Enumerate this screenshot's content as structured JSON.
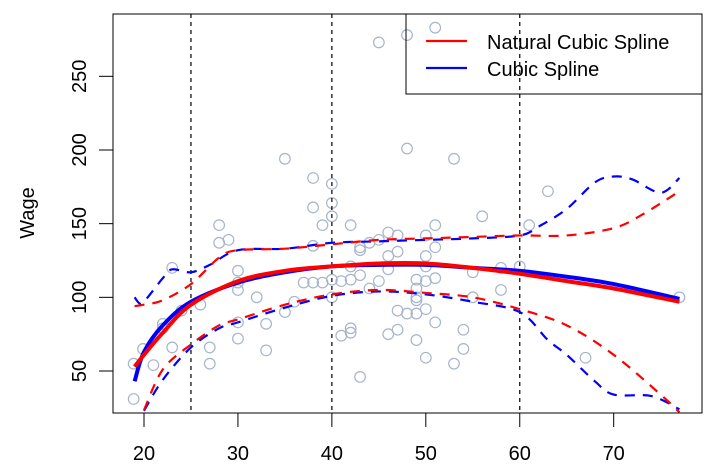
{
  "chart_data": {
    "type": "scatter",
    "title": "",
    "xlabel": "",
    "ylabel": "Wage",
    "xlim": [
      16.7,
      79.4
    ],
    "ylim": [
      21.5,
      292.3
    ],
    "xticks": [
      20,
      30,
      40,
      50,
      60,
      70
    ],
    "yticks": [
      50,
      100,
      150,
      200,
      250
    ],
    "xtick_labels": [
      "20",
      "30",
      "40",
      "50",
      "60",
      "70"
    ],
    "ytick_labels": [
      "50",
      "100",
      "150",
      "200",
      "250"
    ],
    "grid": false,
    "knots": [
      25,
      40,
      60
    ],
    "legend": {
      "placement": "top-right",
      "entries": [
        {
          "label": "Natural Cubic Spline",
          "color": "#ff0000"
        },
        {
          "label": "Cubic Spline",
          "color": "#0000ff"
        }
      ]
    },
    "points_color": "#a6b5cb",
    "points": [
      [
        18.9,
        31
      ],
      [
        18.9,
        55
      ],
      [
        19.9,
        65
      ],
      [
        21,
        54
      ],
      [
        22,
        82
      ],
      [
        22,
        79
      ],
      [
        23,
        120
      ],
      [
        23,
        66
      ],
      [
        24,
        91
      ],
      [
        26,
        95
      ],
      [
        27,
        66
      ],
      [
        27,
        55
      ],
      [
        28,
        149
      ],
      [
        28,
        137
      ],
      [
        29,
        139
      ],
      [
        30,
        118
      ],
      [
        30,
        110
      ],
      [
        30,
        105
      ],
      [
        30,
        83
      ],
      [
        30,
        72
      ],
      [
        32,
        100
      ],
      [
        33,
        82
      ],
      [
        33,
        64
      ],
      [
        35,
        194
      ],
      [
        35,
        90
      ],
      [
        36,
        97
      ],
      [
        37,
        110
      ],
      [
        38,
        181
      ],
      [
        38,
        161
      ],
      [
        38,
        135
      ],
      [
        38,
        110
      ],
      [
        39,
        149
      ],
      [
        39,
        110
      ],
      [
        40,
        177
      ],
      [
        40,
        164
      ],
      [
        40,
        155
      ],
      [
        40,
        112
      ],
      [
        40,
        100
      ],
      [
        41,
        111
      ],
      [
        41,
        74
      ],
      [
        42,
        149
      ],
      [
        42,
        121
      ],
      [
        42,
        112
      ],
      [
        42,
        79
      ],
      [
        42,
        76
      ],
      [
        43,
        134
      ],
      [
        43,
        132
      ],
      [
        43,
        115
      ],
      [
        43,
        46
      ],
      [
        44,
        137
      ],
      [
        44,
        106
      ],
      [
        45,
        273
      ],
      [
        45,
        139
      ],
      [
        45,
        111
      ],
      [
        46,
        144
      ],
      [
        46,
        128
      ],
      [
        46,
        119
      ],
      [
        46,
        75
      ],
      [
        47,
        142
      ],
      [
        47,
        131
      ],
      [
        47,
        91
      ],
      [
        47,
        78
      ],
      [
        48,
        278
      ],
      [
        48,
        201
      ],
      [
        48,
        89
      ],
      [
        49,
        112
      ],
      [
        49,
        106
      ],
      [
        49,
        100
      ],
      [
        49,
        98
      ],
      [
        49,
        89
      ],
      [
        49,
        71
      ],
      [
        50,
        142
      ],
      [
        50,
        128
      ],
      [
        50,
        121
      ],
      [
        50,
        111
      ],
      [
        50,
        92
      ],
      [
        50,
        59
      ],
      [
        51,
        283
      ],
      [
        51,
        149
      ],
      [
        51,
        134
      ],
      [
        51,
        113
      ],
      [
        51,
        83
      ],
      [
        53,
        194
      ],
      [
        53,
        55
      ],
      [
        54,
        78
      ],
      [
        54,
        65
      ],
      [
        55,
        117
      ],
      [
        55,
        100
      ],
      [
        56,
        155
      ],
      [
        58,
        120
      ],
      [
        58,
        105
      ],
      [
        60,
        121
      ],
      [
        61,
        149
      ],
      [
        63,
        172
      ],
      [
        67,
        59
      ],
      [
        77,
        100
      ]
    ],
    "series": [
      {
        "name": "Natural Cubic Spline",
        "color": "#ff0000",
        "style": "solid",
        "x": [
          19,
          20,
          22,
          25,
          30,
          35,
          40,
          45,
          50,
          55,
          60,
          65,
          70,
          77
        ],
        "y": [
          53,
          61,
          76,
          95,
          111,
          118,
          121,
          123,
          123,
          120,
          116,
          111,
          106,
          97
        ]
      },
      {
        "name": "Cubic Spline",
        "color": "#0000ff",
        "style": "solid",
        "x": [
          19,
          20,
          22,
          25,
          30,
          35,
          40,
          45,
          50,
          55,
          60,
          65,
          70,
          77
        ],
        "y": [
          43,
          63,
          81,
          97,
          110,
          117,
          121,
          122,
          122,
          120,
          118,
          114,
          109,
          99
        ]
      },
      {
        "name": "Natural Cubic Spline upper band",
        "color": "#ff0000",
        "style": "dashed",
        "x": [
          19,
          20,
          22,
          25,
          28,
          30,
          35,
          40,
          45,
          50,
          55,
          60,
          65,
          70,
          73,
          77
        ],
        "y": [
          94,
          95,
          98,
          109,
          127,
          132,
          133,
          136,
          139,
          140,
          141,
          142,
          142,
          147,
          156,
          172
        ]
      },
      {
        "name": "Cubic Spline upper band",
        "color": "#0000ff",
        "style": "dashed",
        "x": [
          19,
          19.5,
          20,
          22,
          23,
          25,
          27,
          30,
          35,
          40,
          45,
          50,
          55,
          60,
          62,
          65,
          68,
          70,
          72,
          75,
          77
        ],
        "y": [
          100,
          96,
          97,
          113,
          119,
          117,
          122,
          132,
          133,
          137,
          138,
          139,
          140,
          142,
          148,
          160,
          178,
          182,
          180,
          171,
          181
        ]
      },
      {
        "name": "Natural Cubic Spline lower band",
        "color": "#ff0000",
        "style": "dashed",
        "x": [
          20,
          22,
          25,
          28,
          30,
          35,
          40,
          45,
          50,
          55,
          60,
          65,
          70,
          75,
          77
        ],
        "y": [
          23.5,
          51,
          68,
          81,
          85,
          95,
          102,
          105,
          103,
          100,
          92,
          81,
          61,
          34,
          22
        ]
      },
      {
        "name": "Cubic Spline lower band",
        "color": "#0000ff",
        "style": "dashed",
        "x": [
          20,
          22,
          25,
          28,
          30,
          35,
          40,
          45,
          50,
          55,
          60,
          63,
          65,
          68,
          70,
          74,
          77
        ],
        "y": [
          23,
          44,
          66,
          79,
          83,
          93,
          101,
          104,
          102,
          97,
          90,
          71,
          61,
          43,
          34,
          33,
          24
        ]
      }
    ]
  }
}
